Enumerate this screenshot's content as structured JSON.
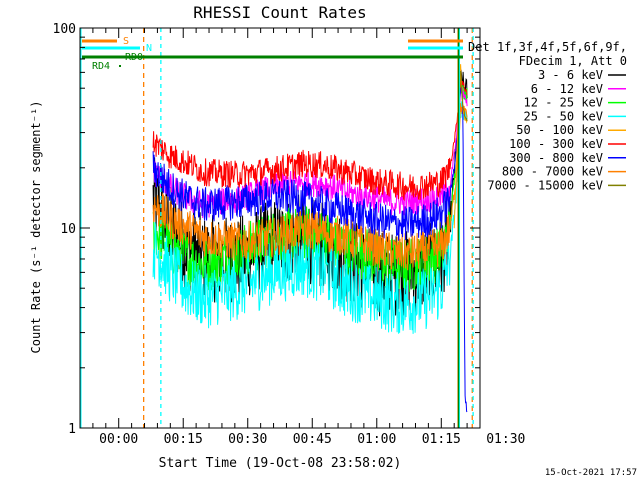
{
  "chart_data": {
    "type": "line",
    "title": "RHESSI Count Rates",
    "xlabel": "Start Time (19-Oct-08 23:58:02)",
    "ylabel": "Count Rate (s⁻¹ detector segment⁻¹)",
    "y_scale": "log",
    "ylim": [
      1,
      100
    ],
    "xlim_minutes_after_start": [
      -7,
      86
    ],
    "x_ticks": [
      {
        "m": 2,
        "label": "00:00"
      },
      {
        "m": 17,
        "label": "00:15"
      },
      {
        "m": 32,
        "label": "00:30"
      },
      {
        "m": 47,
        "label": "00:45"
      },
      {
        "m": 62,
        "label": "01:00"
      },
      {
        "m": 77,
        "label": "01:15"
      },
      {
        "m": 92,
        "label": "01:30"
      }
    ],
    "y_ticks": [
      {
        "v": 1,
        "label": "1"
      },
      {
        "v": 10,
        "label": "10"
      },
      {
        "v": 100,
        "label": "100"
      }
    ],
    "legend": {
      "position": "right",
      "header": [
        "Det 1f,3f,4f,5f,6f,9f,",
        "FDecim 1, Att 0"
      ]
    },
    "series": [
      {
        "name": "3 - 6 keV",
        "color": "#000000",
        "x": [
          10,
          11,
          12,
          14,
          18,
          22,
          30,
          38,
          45,
          50,
          55,
          58,
          62,
          66,
          70,
          74,
          77,
          79,
          80.5,
          81.5,
          82.5,
          83
        ],
        "y": [
          14,
          13,
          12,
          10,
          8,
          7,
          7,
          8.5,
          9,
          8,
          7,
          6.5,
          6,
          5.8,
          6,
          6.3,
          7,
          10,
          25,
          55,
          50,
          48
        ]
      },
      {
        "name": "6 - 12 keV",
        "color": "#ff00ff",
        "x": [
          10,
          12,
          14,
          18,
          22,
          30,
          38,
          45,
          50,
          55,
          62,
          66,
          70,
          74,
          77,
          79,
          80.5,
          81.5,
          82.5,
          83
        ],
        "y": [
          19,
          18,
          16,
          14,
          13,
          14,
          16,
          17,
          16.5,
          15,
          14,
          13.5,
          13.5,
          14,
          14.5,
          16,
          28,
          50,
          45,
          42
        ]
      },
      {
        "name": "12 - 25 keV",
        "color": "#00ff00",
        "x": [
          10,
          12,
          14,
          18,
          22,
          30,
          38,
          45,
          50,
          55,
          62,
          66,
          70,
          74,
          77,
          79,
          80.5,
          81.5,
          82.5,
          83
        ],
        "y": [
          10,
          9,
          8,
          7,
          6.5,
          7.5,
          9,
          9.5,
          9,
          8,
          7,
          6.5,
          6.5,
          7,
          7.5,
          10,
          22,
          50,
          48,
          46
        ]
      },
      {
        "name": "25 - 50 keV",
        "color": "#00ffff",
        "x": [
          10,
          12,
          14,
          18,
          22,
          30,
          38,
          45,
          50,
          55,
          62,
          66,
          70,
          74,
          77,
          79,
          80.5,
          81.5,
          82.5,
          83
        ],
        "y": [
          8,
          7,
          6,
          5,
          4.5,
          5,
          6,
          6.5,
          6,
          5,
          4.5,
          4.2,
          4.2,
          4.5,
          5,
          7,
          15,
          40,
          38,
          36
        ]
      },
      {
        "name": "50 - 100 keV",
        "color": "#ffaa00",
        "x": [
          80,
          80.5,
          81,
          81.5,
          82,
          82.5,
          83
        ],
        "y": [
          10,
          20,
          40,
          65,
          40,
          35,
          34
        ]
      },
      {
        "name": "100 - 300 keV",
        "color": "#ff0000",
        "x": [
          10,
          12,
          14,
          18,
          22,
          30,
          38,
          45,
          50,
          55,
          62,
          66,
          70,
          74,
          77,
          79,
          80.5,
          81.5,
          82.5,
          83
        ],
        "y": [
          27,
          25,
          23,
          21,
          19,
          18.5,
          19.5,
          21,
          20.5,
          19,
          17,
          16.5,
          16,
          16.5,
          17,
          20,
          32,
          55,
          50,
          48
        ]
      },
      {
        "name": "300 - 800 keV",
        "color": "#0000ff",
        "x": [
          10,
          12,
          14,
          18,
          22,
          30,
          38,
          45,
          50,
          55,
          62,
          66,
          70,
          74,
          77,
          79,
          80.5,
          81.5,
          82,
          82.5,
          83
        ],
        "y": [
          20,
          18,
          16,
          14,
          13,
          13.5,
          14.5,
          14,
          13,
          12,
          11,
          10.5,
          10.5,
          11,
          12,
          14,
          25,
          50,
          45,
          1.5,
          1.2
        ]
      },
      {
        "name": "800 - 7000 keV",
        "color": "#ff8000",
        "x": [
          10,
          12,
          14,
          18,
          22,
          30,
          38,
          45,
          50,
          55,
          62,
          66,
          70,
          74,
          77,
          79,
          80.5,
          81.5,
          82.5,
          83
        ],
        "y": [
          13,
          12,
          11,
          10,
          9,
          8.5,
          9,
          10,
          9.5,
          9,
          8,
          7.5,
          7.5,
          7.8,
          8,
          10,
          18,
          40,
          38,
          36
        ]
      },
      {
        "name": "7000 - 15000 keV",
        "color": "#808000",
        "x": [
          81.5,
          82,
          82.5,
          83
        ],
        "y": [
          60,
          40,
          36,
          35
        ]
      }
    ],
    "markers": [
      {
        "label": "S",
        "color": "#ff8000"
      },
      {
        "label": "N",
        "color": "#00ffff"
      },
      {
        "label": "RD0",
        "color": "#008000"
      },
      {
        "label": "RD4",
        "color": "#008000"
      }
    ]
  },
  "footer": {
    "timestamp": "15-Oct-2021 17:57"
  }
}
